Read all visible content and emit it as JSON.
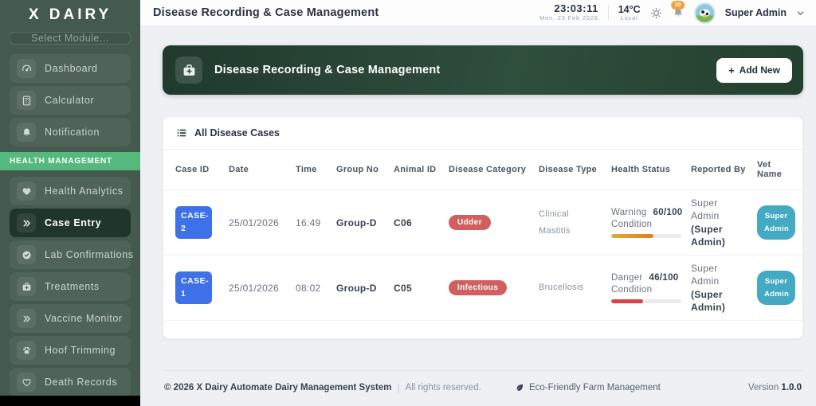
{
  "theme": {
    "sidebar_bg": "#455a4f",
    "accent_green": "#55b97d",
    "active_item": "#20362b",
    "banner_green": "#2f4e3c",
    "case_blue": "#3e70e8",
    "category_red": "#d25f5f",
    "vet_teal": "#44a9c2",
    "warning_orange": "#d8831f",
    "danger_red": "#d94444"
  },
  "sidebar": {
    "logo": "X DAIRY",
    "module_select_placeholder": "Select Module...",
    "section_label": "HEALTH MANAGEMENT",
    "items": [
      {
        "label": "Dashboard",
        "icon": "gauge"
      },
      {
        "label": "Calculator",
        "icon": "calculator"
      },
      {
        "label": "Notification",
        "icon": "bell"
      },
      {
        "label": "Health Analytics",
        "icon": "heart-pulse"
      },
      {
        "label": "Case Entry",
        "icon": "chevrons-right",
        "active": true
      },
      {
        "label": "Lab Confirmations",
        "icon": "check-circle"
      },
      {
        "label": "Treatments",
        "icon": "medical-kit"
      },
      {
        "label": "Vaccine Monitor",
        "icon": "chevrons-right"
      },
      {
        "label": "Hoof Trimming",
        "icon": "paw"
      },
      {
        "label": "Death Records",
        "icon": "heart-outline"
      }
    ]
  },
  "header": {
    "title": "Disease Recording & Case Management",
    "time": "23:03:11",
    "date": "Mon, 23 Feb 2026",
    "temperature": "14°C",
    "temperature_label": "Local",
    "notification_count": "10",
    "user_name": "Super Admin"
  },
  "banner": {
    "title": "Disease Recording & Case Management",
    "plus_glyph": "+",
    "add_button_label": "Add New"
  },
  "table": {
    "card_title": "All Disease Cases",
    "columns": [
      "Case ID",
      "Date",
      "Time",
      "Group No",
      "Animal ID",
      "Disease Category",
      "Disease Type",
      "Health Status",
      "Reported By",
      "Vet Name"
    ],
    "rows": [
      {
        "case_id": "CASE-2",
        "date": "25/01/2026",
        "time": "16:49",
        "group_no": "Group-D",
        "animal_id": "C06",
        "disease_category": "Udder",
        "disease_type": "Clinical Mastitis",
        "health": {
          "level": "Warning",
          "score": "60/100",
          "label": "Condition",
          "percent": 60,
          "state": "warning"
        },
        "reported_by": "Super Admin",
        "reported_by_role": "(Super Admin)",
        "vet_name": "Super Admin"
      },
      {
        "case_id": "CASE-1",
        "date": "25/01/2026",
        "time": "08:02",
        "group_no": "Group-D",
        "animal_id": "C05",
        "disease_category": "Infectious",
        "disease_type": "Brucellosis",
        "health": {
          "level": "Danger",
          "score": "46/100",
          "label": "Condition",
          "percent": 46,
          "state": "danger"
        },
        "reported_by": "Super Admin",
        "reported_by_role": "(Super Admin)",
        "vet_name": "Super Admin"
      }
    ]
  },
  "footer": {
    "copyright": "© 2026 X Dairy Automate Dairy Management System",
    "separator": "|",
    "rights": "All rights reserved.",
    "eco_label": "Eco-Friendly Farm Management",
    "version_label": "Version",
    "version": "1.0.0"
  }
}
